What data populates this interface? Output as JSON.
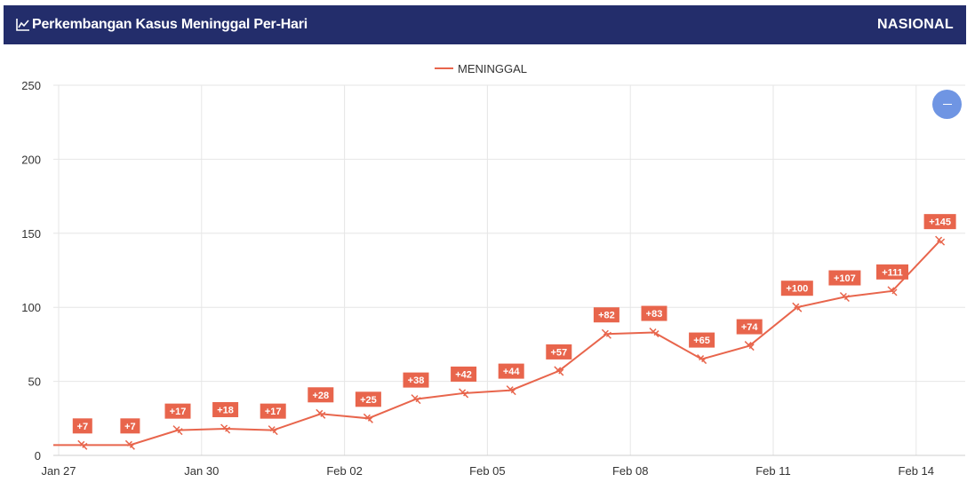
{
  "header": {
    "title": "Perkembangan Kasus Meninggal Per-Hari",
    "region": "NASIONAL",
    "title_icon": "line-chart-icon"
  },
  "zoom_button": {
    "icon": "minus-icon"
  },
  "colors": {
    "header_bg": "#232d6b",
    "series": "#e8654c",
    "zoom_button": "#6f95e3"
  },
  "chart_data": {
    "type": "line",
    "series": [
      {
        "name": "MENINGGAL",
        "x": [
          "Jan 27",
          "Jan 28",
          "Jan 29",
          "Jan 30",
          "Jan 31",
          "Feb 01",
          "Feb 02",
          "Feb 03",
          "Feb 04",
          "Feb 05",
          "Feb 06",
          "Feb 07",
          "Feb 08",
          "Feb 09",
          "Feb 10",
          "Feb 11",
          "Feb 12",
          "Feb 13",
          "Feb 14"
        ],
        "values": [
          7,
          7,
          17,
          18,
          17,
          28,
          25,
          38,
          42,
          44,
          57,
          82,
          83,
          65,
          74,
          100,
          107,
          111,
          145
        ],
        "data_labels": [
          "+7",
          "+7",
          "+17",
          "+18",
          "+17",
          "+28",
          "+25",
          "+38",
          "+42",
          "+44",
          "+57",
          "+82",
          "+83",
          "+65",
          "+74",
          "+100",
          "+107",
          "+111",
          "+145"
        ]
      }
    ],
    "x_ticks": [
      "Jan 27",
      "Jan 30",
      "Feb 02",
      "Feb 05",
      "Feb 08",
      "Feb 11",
      "Feb 14"
    ],
    "y_ticks": [
      "0",
      "50",
      "100",
      "150",
      "200",
      "250"
    ],
    "ylim": [
      0,
      250
    ],
    "legend_position": "top-center",
    "grid": true
  }
}
